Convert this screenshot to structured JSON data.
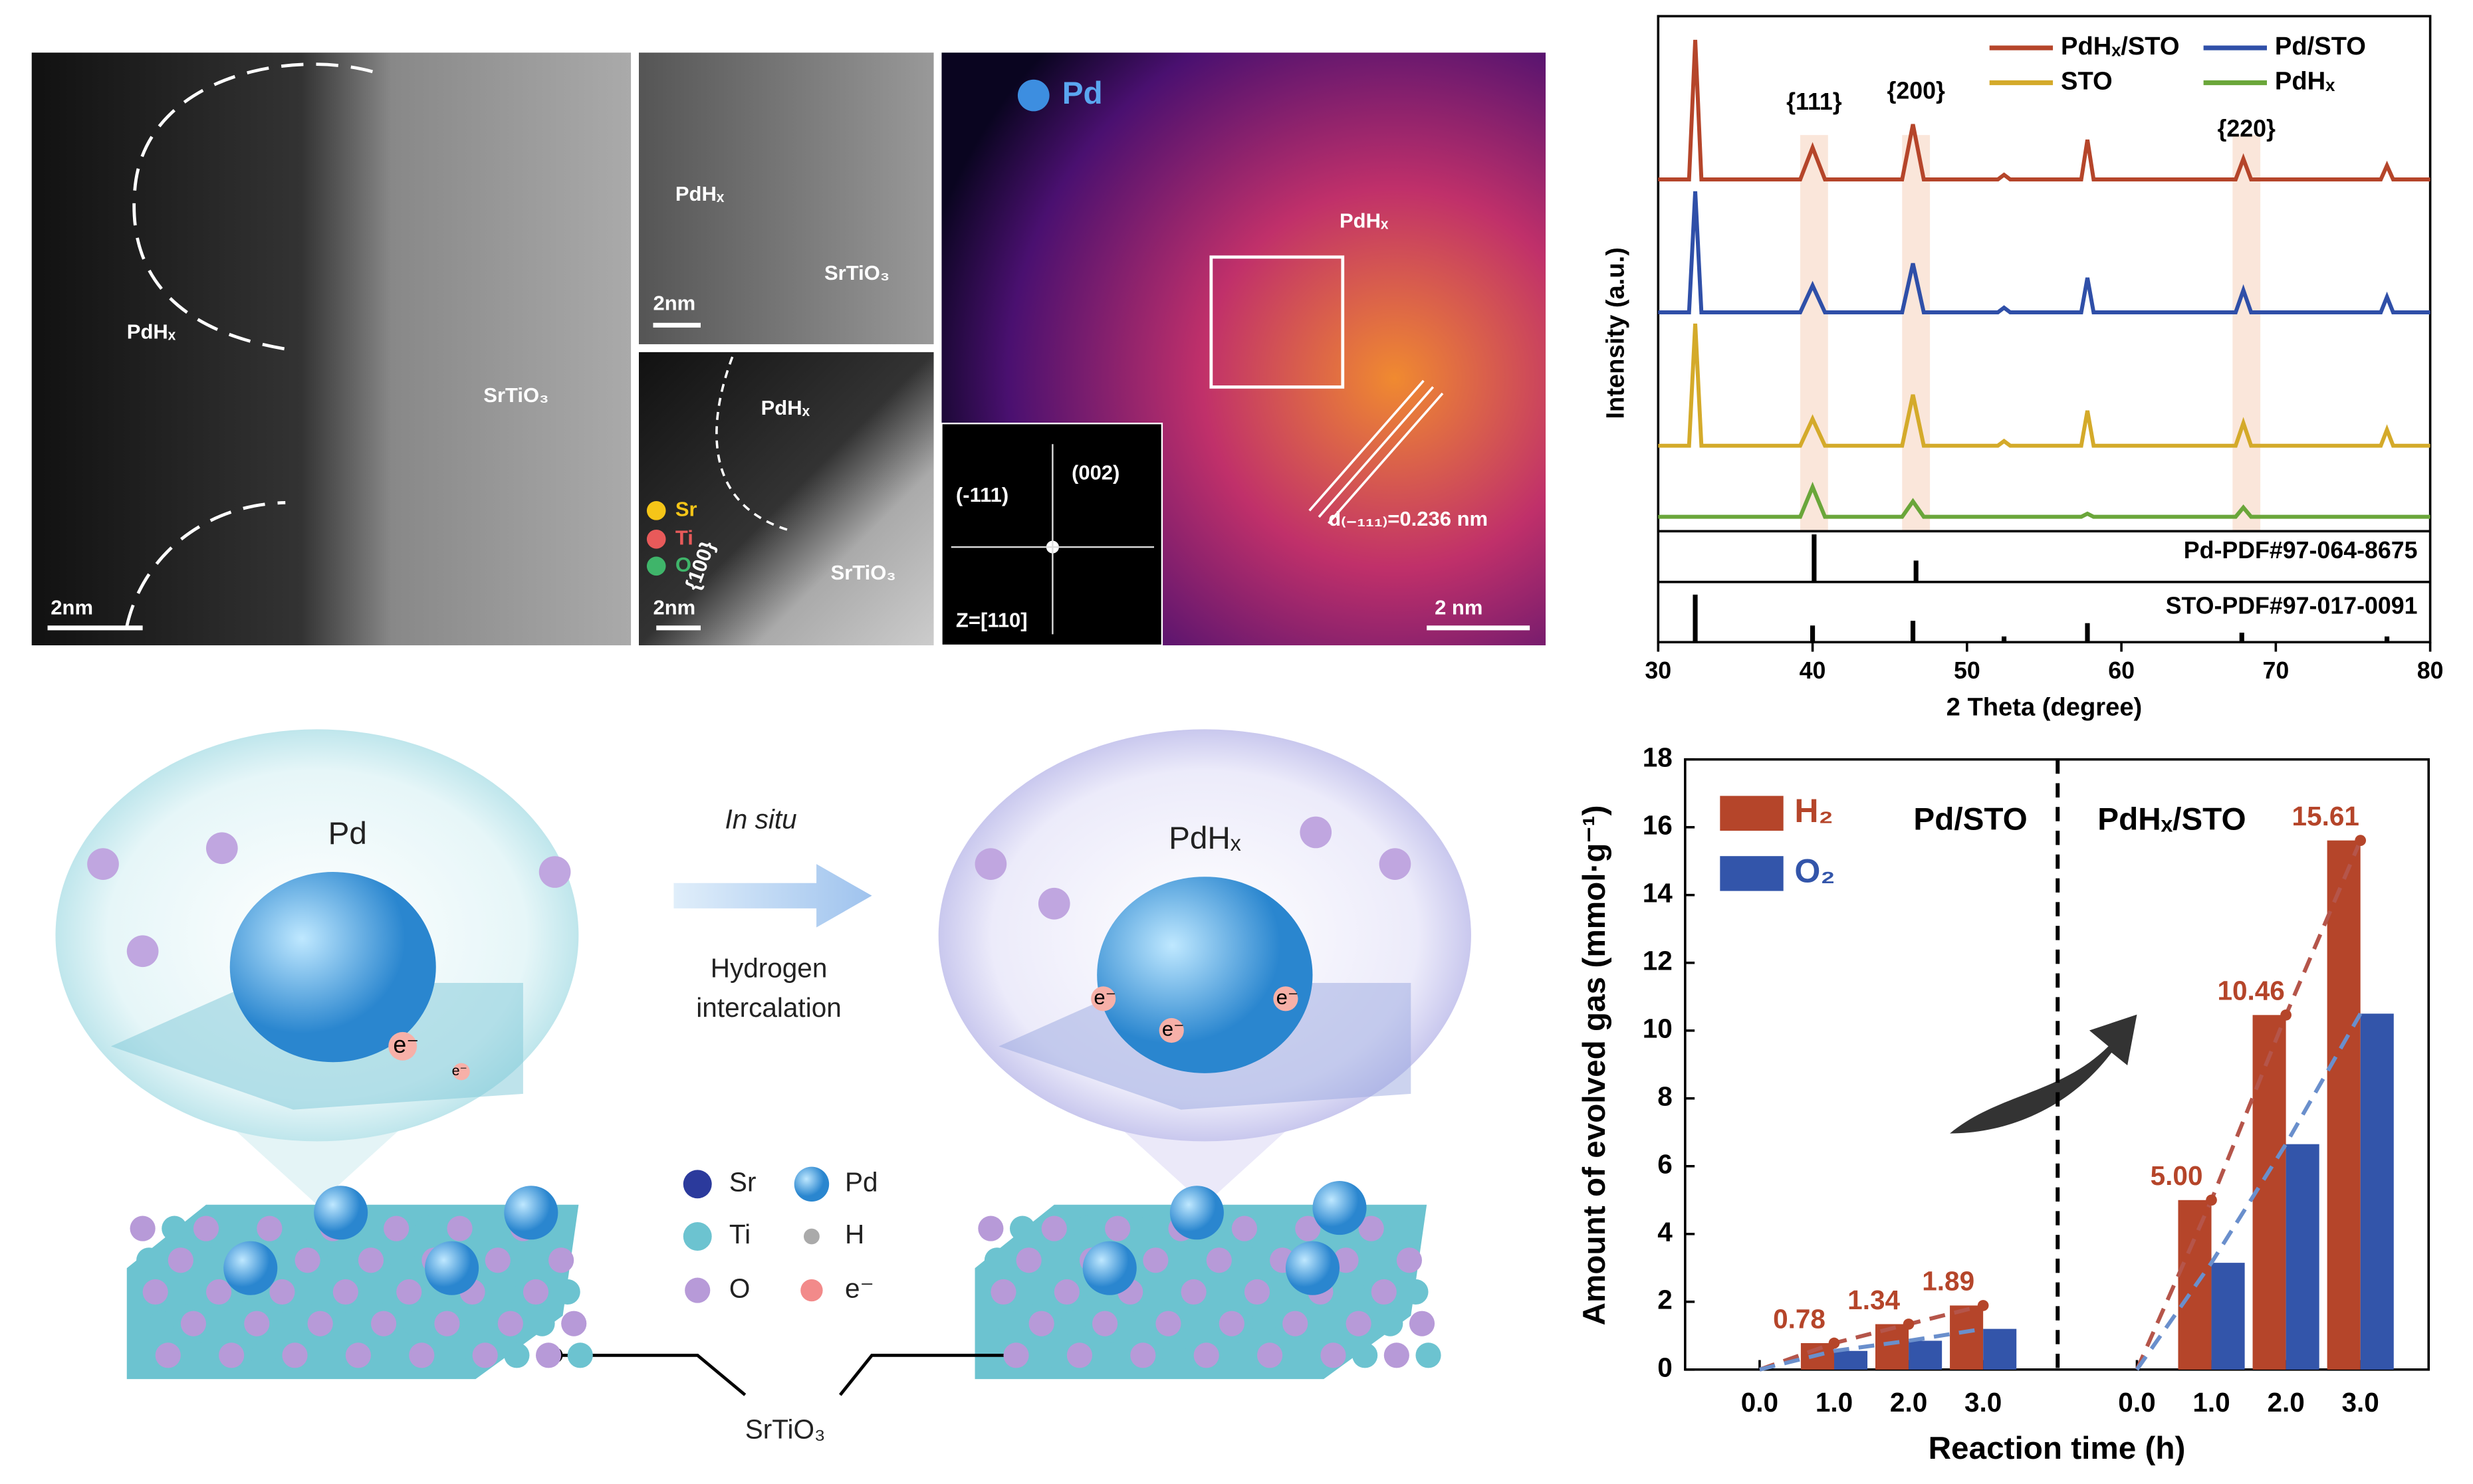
{
  "micrographs": [
    {
      "texts": [
        "PdHₓ",
        "SrTiO₃",
        "2nm"
      ]
    },
    {
      "texts": [
        "PdHₓ",
        "SrTiO₃",
        "2nm"
      ]
    },
    {
      "texts": [
        "PdHₓ",
        "Sr",
        "Ti",
        "O",
        "{100}",
        "SrTiO₃",
        "2nm"
      ]
    },
    {
      "texts": [
        "Pd",
        "PdHₓ",
        "(002)",
        "(-111)",
        "Z=[110]",
        "d₍₋₁₁₁₎=0.236 nm",
        "2 nm"
      ]
    }
  ],
  "schematic": {
    "texts": [
      "Pd",
      "In situ",
      "Hydrogen",
      "intercalation",
      "PdHₓ",
      "Sr",
      "Pd",
      "Ti",
      "H",
      "O",
      "e⁻",
      "SrTiO₃"
    ],
    "bubble_labels": [
      "e⁻",
      "e⁻",
      "e⁻",
      "e⁻",
      "e⁻"
    ]
  },
  "chart_data": [
    {
      "type": "line",
      "x_label": "2 Theta (degree)",
      "y_label": "Intensity (a.u.)",
      "xlim": [
        30,
        80
      ],
      "xticks": [
        30,
        40,
        50,
        60,
        70,
        80
      ],
      "ylim": [
        0,
        100
      ],
      "x": [
        30,
        32.0,
        32.4,
        32.8,
        39.2,
        40.0,
        40.8,
        45.8,
        46.5,
        47.2,
        52.0,
        52.4,
        52.8,
        57.4,
        57.8,
        58.2,
        67.4,
        67.9,
        68.4,
        76.8,
        77.2,
        77.6,
        80
      ],
      "series": [
        {
          "name": "PdHₓ/STO",
          "color": "#b5452a",
          "values": [
            68.3,
            68.3,
            95.4,
            68.3,
            68.3,
            74.5,
            68.3,
            68.3,
            79,
            68.3,
            68.3,
            69.2,
            68.3,
            68.3,
            76,
            68.3,
            68.3,
            72.3,
            68.3,
            68.3,
            71,
            68.3,
            68.3
          ]
        },
        {
          "name": "Pd/STO",
          "color": "#2f4fa8",
          "values": [
            42.5,
            42.5,
            66,
            42.5,
            42.5,
            47.7,
            42.5,
            42.5,
            52,
            42.5,
            42.5,
            43.4,
            42.5,
            42.5,
            49.2,
            42.5,
            42.5,
            46.8,
            42.5,
            42.5,
            45.5,
            42.5,
            42.5
          ]
        },
        {
          "name": "STO",
          "color": "#d4aa2a",
          "values": [
            16.6,
            16.6,
            40.3,
            16.6,
            16.6,
            21.8,
            16.6,
            16.6,
            26.5,
            16.6,
            16.6,
            17.5,
            16.6,
            16.6,
            23.4,
            16.6,
            16.6,
            21,
            16.6,
            16.6,
            19.7,
            16.6,
            16.6
          ]
        },
        {
          "name": "PdHₓ",
          "color": "#6aa63a",
          "values": [
            2.8,
            2.8,
            2.8,
            2.8,
            2.8,
            8.6,
            2.8,
            2.8,
            5.8,
            2.8,
            2.8,
            2.8,
            2.8,
            2.8,
            3.4,
            2.8,
            2.8,
            4.6,
            2.8,
            2.8,
            2.8,
            2.8,
            2.8
          ]
        }
      ],
      "highlights": [
        {
          "label": "{111}",
          "range": [
            39.2,
            41
          ]
        },
        {
          "label": "{200}",
          "range": [
            45.8,
            47.6
          ]
        },
        {
          "label": "{220}",
          "range": [
            67.2,
            69
          ]
        }
      ],
      "references": [
        {
          "name": "Pd-PDF#97-064-8675",
          "x": [
            40.1,
            46.7
          ],
          "values": [
            100,
            45
          ]
        },
        {
          "name": "STO-PDF#97-017-0091",
          "x": [
            32.4,
            40.0,
            46.5,
            52.4,
            57.8,
            67.8,
            77.2
          ],
          "values": [
            100,
            35,
            45,
            12,
            40,
            20,
            12
          ]
        }
      ]
    },
    {
      "type": "bar",
      "x_label": "Reaction time (h)",
      "y_label": "Amount of evolved gas (mmol·g⁻¹)",
      "categories": [
        "0.0",
        "1.0",
        "2.0",
        "3.0",
        "0.0",
        "1.0",
        "2.0",
        "3.0"
      ],
      "groups": [
        "Pd/STO",
        "PdHₓ/STO"
      ],
      "ylim": [
        0,
        18
      ],
      "yticks": [
        0,
        2,
        4,
        6,
        8,
        10,
        12,
        14,
        16,
        18
      ],
      "series": [
        {
          "name": "H₂",
          "color": "#b5452a",
          "values": [
            0,
            0.78,
            1.34,
            1.89,
            0,
            5.0,
            10.46,
            15.61
          ],
          "value_labels": [
            null,
            "0.78",
            "1.34",
            "1.89",
            null,
            "5.00",
            "10.46",
            "15.61"
          ]
        },
        {
          "name": "O₂",
          "color": "#3355aa",
          "values": [
            0,
            0.55,
            0.85,
            1.2,
            0,
            3.15,
            6.65,
            10.5
          ]
        }
      ]
    }
  ]
}
